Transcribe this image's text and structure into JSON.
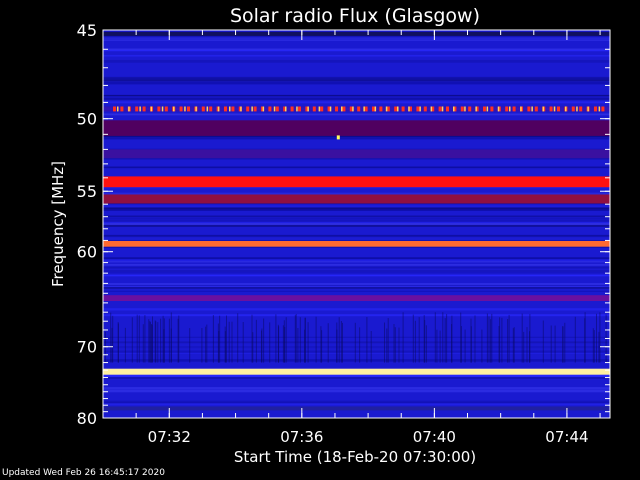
{
  "chart_data": {
    "type": "heatmap",
    "title": "Solar radio Flux (Glasgow)",
    "xlabel": "Start Time (18-Feb-20 07:30:00)",
    "ylabel": "Frequency [MHz]",
    "x_range_minutes": [
      0,
      15.3
    ],
    "y_range_mhz": [
      45,
      80
    ],
    "y_scale": "reciprocal",
    "x_ticks": [
      {
        "label": "07:32",
        "minute": 2
      },
      {
        "label": "07:36",
        "minute": 6
      },
      {
        "label": "07:40",
        "minute": 10
      },
      {
        "label": "07:44",
        "minute": 14
      }
    ],
    "y_ticks": [
      {
        "label": "45",
        "mhz": 45
      },
      {
        "label": "50",
        "mhz": 50
      },
      {
        "label": "55",
        "mhz": 55
      },
      {
        "label": "60",
        "mhz": 60
      },
      {
        "label": "70",
        "mhz": 70
      },
      {
        "label": "80",
        "mhz": 80
      }
    ],
    "background_color": "#1a1ad0",
    "bands": [
      {
        "mhz": 45.2,
        "width_mhz": 0.2,
        "color": "#101060"
      },
      {
        "mhz": 49.4,
        "width_mhz": 0.3,
        "color": "#c01030",
        "dashed": true
      },
      {
        "mhz": 50.6,
        "width_mhz": 1.0,
        "color": "#500060"
      },
      {
        "mhz": 52.3,
        "width_mhz": 0.6,
        "color": "#3a10a0"
      },
      {
        "mhz": 54.3,
        "width_mhz": 0.8,
        "color": "#ff1010"
      },
      {
        "mhz": 55.6,
        "width_mhz": 0.7,
        "color": "#901040"
      },
      {
        "mhz": 59.3,
        "width_mhz": 0.5,
        "color": "#ff6a30"
      },
      {
        "mhz": 64.5,
        "width_mhz": 0.6,
        "color": "#6a10a0"
      },
      {
        "mhz": 73.2,
        "width_mhz": 0.8,
        "color": "#fff0a0"
      },
      {
        "mhz": 78.5,
        "width_mhz": 0.6,
        "color": "#2020a0"
      }
    ],
    "bursts": [
      {
        "minute": 7.1,
        "mhz": 51.2,
        "color": "#ffff60"
      }
    ]
  },
  "footer": {
    "updated": "Updated Wed Feb 26 16:45:17 2020"
  }
}
